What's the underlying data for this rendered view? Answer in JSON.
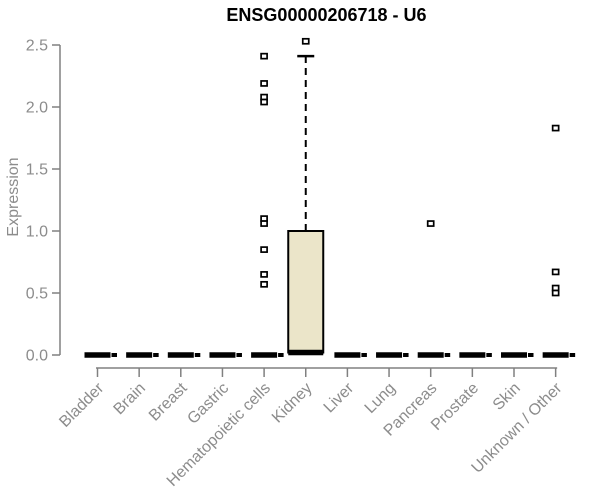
{
  "title": "ENSG00000206718 - U6",
  "colors": {
    "box_fill": "#EBE5C9",
    "box_stroke": "#000000",
    "axis_line": "#808080",
    "axis_text": "#8c8c8c",
    "title_text": "#000000",
    "background": "#ffffff"
  },
  "chart_data": {
    "type": "boxplot",
    "title": "ENSG00000206718 - U6",
    "xlabel": "",
    "ylabel": "Expression",
    "ylim": [
      0,
      2.5
    ],
    "yticks": [
      0.0,
      0.5,
      1.0,
      1.5,
      2.0,
      2.5
    ],
    "grid": false,
    "legend": "none",
    "categories": [
      "Bladder",
      "Brain",
      "Breast",
      "Gastric",
      "Hematopoietic cells",
      "Kidney",
      "Liver",
      "Lung",
      "Pancreas",
      "Prostate",
      "Skin",
      "Unknown / Other"
    ],
    "boxes": [
      {
        "category": "Bladder",
        "median": 0,
        "q1": 0,
        "q3": 0,
        "whisker_low": 0,
        "whisker_high": 0,
        "outliers": []
      },
      {
        "category": "Brain",
        "median": 0,
        "q1": 0,
        "q3": 0,
        "whisker_low": 0,
        "whisker_high": 0,
        "outliers": []
      },
      {
        "category": "Breast",
        "median": 0,
        "q1": 0,
        "q3": 0,
        "whisker_low": 0,
        "whisker_high": 0,
        "outliers": []
      },
      {
        "category": "Gastric",
        "median": 0,
        "q1": 0,
        "q3": 0,
        "whisker_low": 0,
        "whisker_high": 0,
        "outliers": []
      },
      {
        "category": "Hematopoietic cells",
        "median": 0,
        "q1": 0,
        "q3": 0,
        "whisker_low": 0,
        "whisker_high": 0,
        "outliers": [
          2.41,
          2.19,
          2.08,
          2.04,
          1.1,
          1.06,
          0.85,
          0.65,
          0.57
        ]
      },
      {
        "category": "Kidney",
        "median": 0.02,
        "q1": 0.02,
        "q3": 1.0,
        "whisker_low": 0,
        "whisker_high": 2.41,
        "outliers": [
          2.53
        ]
      },
      {
        "category": "Liver",
        "median": 0,
        "q1": 0,
        "q3": 0,
        "whisker_low": 0,
        "whisker_high": 0,
        "outliers": []
      },
      {
        "category": "Lung",
        "median": 0,
        "q1": 0,
        "q3": 0,
        "whisker_low": 0,
        "whisker_high": 0,
        "outliers": []
      },
      {
        "category": "Pancreas",
        "median": 0,
        "q1": 0,
        "q3": 0,
        "whisker_low": 0,
        "whisker_high": 0,
        "outliers": [
          1.06
        ]
      },
      {
        "category": "Prostate",
        "median": 0,
        "q1": 0,
        "q3": 0,
        "whisker_low": 0,
        "whisker_high": 0,
        "outliers": []
      },
      {
        "category": "Skin",
        "median": 0,
        "q1": 0,
        "q3": 0,
        "whisker_low": 0,
        "whisker_high": 0,
        "outliers": []
      },
      {
        "category": "Unknown / Other",
        "median": 0,
        "q1": 0,
        "q3": 0,
        "whisker_low": 0,
        "whisker_high": 0,
        "outliers": [
          1.83,
          0.67,
          0.54,
          0.5
        ]
      }
    ]
  }
}
